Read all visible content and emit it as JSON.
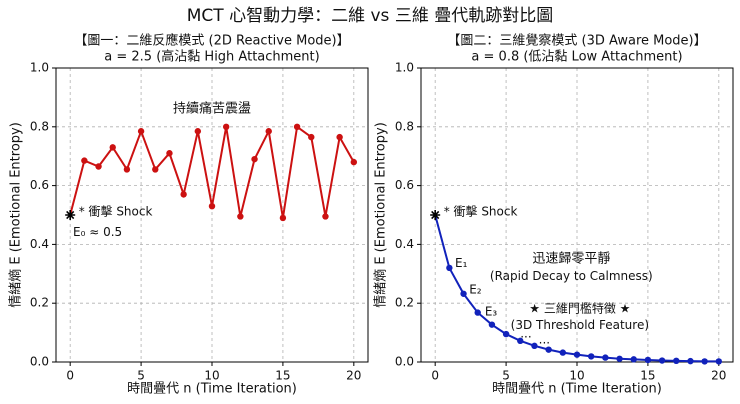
{
  "title": "MCT 心智動力學：二維 vs 三維 疊代軌跡對比圖",
  "chart_data": [
    {
      "type": "line",
      "title": "【圖一：二維反應模式 (2D Reactive Mode)】",
      "subtitle": "a = 2.5 (高沾黏 High Attachment)",
      "xlabel": "時間疊代 n (Time Iteration)",
      "ylabel": "情緒熵 E (Emotional Entropy)",
      "x": [
        0,
        1,
        2,
        3,
        4,
        5,
        6,
        7,
        8,
        9,
        10,
        11,
        12,
        13,
        14,
        15,
        16,
        17,
        18,
        19,
        20
      ],
      "values": [
        0.5,
        0.685,
        0.665,
        0.73,
        0.655,
        0.785,
        0.655,
        0.71,
        0.57,
        0.785,
        0.53,
        0.8,
        0.495,
        0.69,
        0.785,
        0.49,
        0.8,
        0.765,
        0.495,
        0.765,
        0.68
      ],
      "color": "#cc1111",
      "xlim": [
        -1,
        21
      ],
      "ylim": [
        0,
        1
      ],
      "xticks": [
        0,
        5,
        10,
        15,
        20
      ],
      "yticks": [
        {
          "value": 0,
          "label": "0.0"
        },
        0.2,
        0.4,
        0.6,
        0.8,
        {
          "value": 1,
          "label": "1.0"
        }
      ],
      "grid": true,
      "annotations": [
        "* 衝擊 Shock",
        "E₀ ≈ 0.5",
        "持續痛苦震盪"
      ]
    },
    {
      "type": "line",
      "title": "【圖二：三維覺察模式 (3D Aware Mode)】",
      "subtitle": "a = 0.8 (低沾黏 Low Attachment)",
      "xlabel": "時間疊代 n (Time Iteration)",
      "ylabel": "情緒熵 E (Emotional Entropy)",
      "x": [
        0,
        1,
        2,
        3,
        4,
        5,
        6,
        7,
        8,
        9,
        10,
        11,
        12,
        13,
        14,
        15,
        16,
        17,
        18,
        19,
        20
      ],
      "values": [
        0.5,
        0.32,
        0.232,
        0.168,
        0.127,
        0.095,
        0.072,
        0.055,
        0.042,
        0.032,
        0.025,
        0.019,
        0.015,
        0.011,
        0.009,
        0.007,
        0.005,
        0.004,
        0.003,
        0.002,
        0.002
      ],
      "color": "#1122bb",
      "xlim": [
        -1,
        21
      ],
      "ylim": [
        0,
        1
      ],
      "xticks": [
        0,
        5,
        10,
        15,
        20
      ],
      "yticks": [
        {
          "value": 0,
          "label": "0.0"
        },
        0.2,
        0.4,
        0.6,
        0.8,
        {
          "value": 1,
          "label": "1.0"
        }
      ],
      "grid": true,
      "annotations": [
        "* 衝擊 Shock",
        "E₁",
        "E₂",
        "E₃",
        "...",
        "...",
        "迅速歸零平靜",
        "(Rapid Decay to Calmness)",
        "★ 三維門檻特徵 ★",
        "(3D Threshold Feature)"
      ]
    }
  ]
}
